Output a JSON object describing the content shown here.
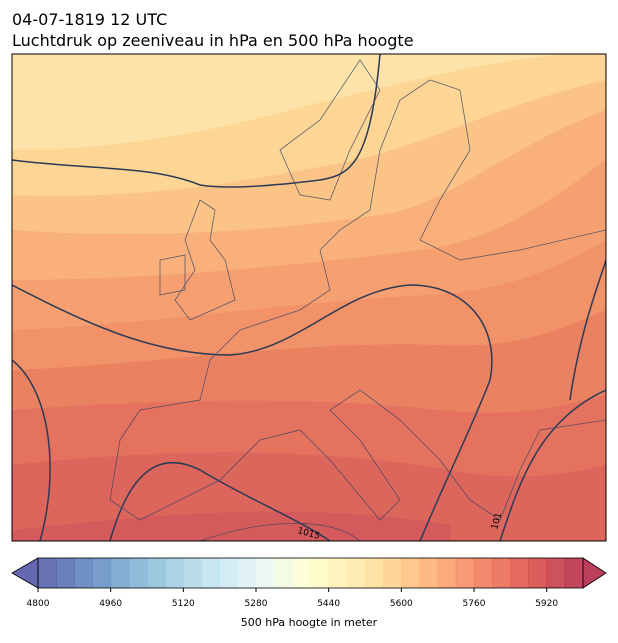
{
  "header": {
    "date": "04-07-1819 12 UTC",
    "title": "Luchtdruk op zeeniveau in hPa en 500 hPa hoogte"
  },
  "map": {
    "isobar_labels": [
      "1015",
      "101"
    ]
  },
  "colorbar": {
    "label": "500 hPa hoogte in meter",
    "range": [
      4800,
      6000
    ],
    "ticks": [
      4800,
      4960,
      5120,
      5280,
      5440,
      5600,
      5760,
      5920
    ],
    "colormap": [
      "#313695",
      "#4575b4",
      "#74add1",
      "#abd9e9",
      "#e0f3f8",
      "#ffffbf",
      "#fee090",
      "#fdae61",
      "#f46d43",
      "#d73027",
      "#a50026"
    ]
  }
}
